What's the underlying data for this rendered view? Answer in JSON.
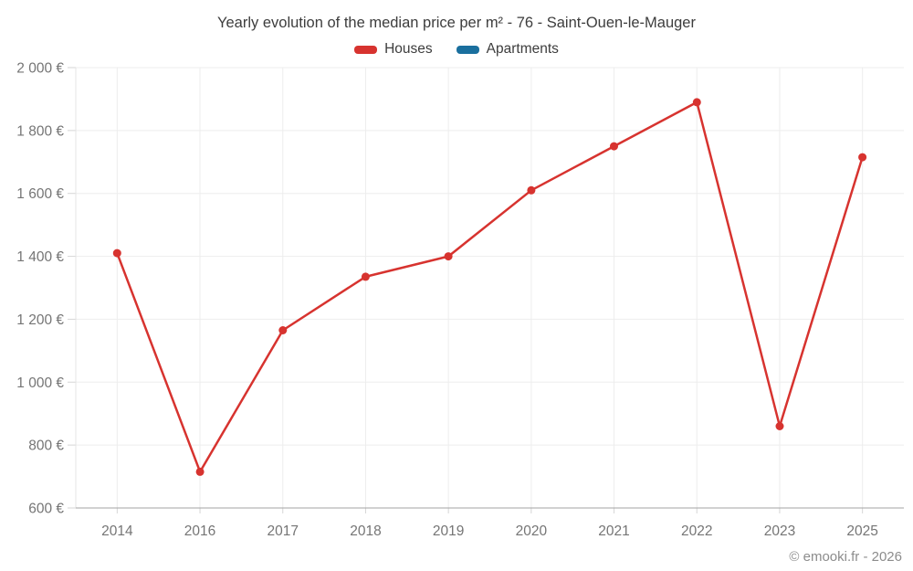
{
  "title": "Yearly evolution of the median price per m² - 76 - Saint-Ouen-le-Mauger",
  "footer": "© emooki.fr - 2026",
  "legend": {
    "houses": {
      "label": "Houses",
      "color": "#d7332f"
    },
    "apartments": {
      "label": "Apartments",
      "color": "#1a6f9e"
    }
  },
  "chart_data": {
    "type": "line",
    "title": "Yearly evolution of the median price per m² - 76 - Saint-Ouen-le-Mauger",
    "categories": [
      "2014",
      "2016",
      "2017",
      "2018",
      "2019",
      "2020",
      "2021",
      "2022",
      "2023",
      "2025"
    ],
    "series": [
      {
        "name": "Houses",
        "color": "#d7332f",
        "values": [
          1410,
          715,
          1165,
          1335,
          1400,
          1610,
          1750,
          1890,
          860,
          1715
        ]
      },
      {
        "name": "Apartments",
        "color": "#1a6f9e",
        "values": []
      }
    ],
    "xlabel": "",
    "ylabel": "",
    "ylim": [
      600,
      2000
    ],
    "ytick_step": 200,
    "ytick_format": "{value} €",
    "grid": true,
    "legend_position": "top",
    "colors": {
      "grid": "#ededed",
      "y_axis_line": "#e4e4e4",
      "x_axis_line": "#a3a3a3",
      "tick": "#d6d6d6",
      "axis_text": "#757575"
    }
  }
}
